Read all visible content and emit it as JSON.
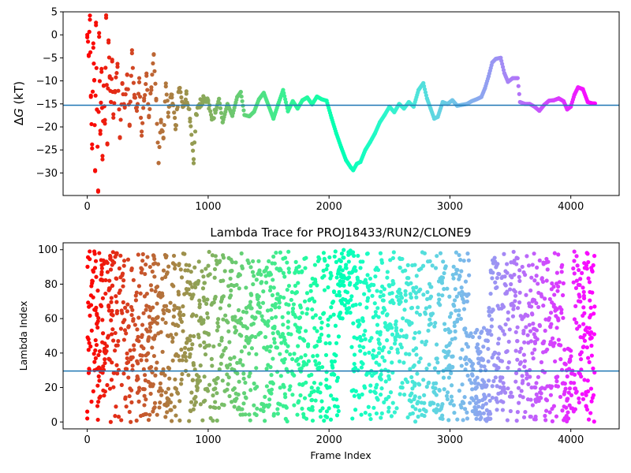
{
  "chart_data": [
    {
      "type": "scatter",
      "title": "",
      "xlabel": "",
      "ylabel": "ΔG (kT)",
      "ylabel_parts": {
        "symbol": "Δ",
        "var": "G",
        "unit": " (kT)"
      },
      "xlim": [
        -200,
        4400
      ],
      "ylim": [
        -34.9,
        5
      ],
      "xticks": [
        0,
        1000,
        2000,
        3000,
        4000
      ],
      "yticks": [
        5,
        0,
        -5,
        -10,
        -15,
        -20,
        -25,
        -30
      ],
      "hline": -15.3,
      "hline_color": "#1f77b4",
      "colormap": "rainbow",
      "frame_range": [
        0,
        4200
      ],
      "series": [
        {
          "points": [
            [
              0,
              0.0
            ],
            [
              12,
              -4.6
            ],
            [
              22,
              4.2
            ],
            [
              30,
              -13.2
            ],
            [
              40,
              -23.8
            ],
            [
              50,
              -2.8
            ],
            [
              58,
              -9.8
            ],
            [
              65,
              -29.6
            ],
            [
              72,
              2.1
            ],
            [
              80,
              -16.2
            ],
            [
              90,
              -33.8
            ],
            [
              98,
              0.4
            ],
            [
              108,
              -21.5
            ],
            [
              118,
              -7.4
            ],
            [
              126,
              -26.3
            ],
            [
              136,
              -11.0
            ],
            [
              146,
              -18.5
            ],
            [
              156,
              3.7
            ],
            [
              166,
              -23.8
            ],
            [
              176,
              -1.2
            ],
            [
              186,
              -9.0
            ],
            [
              196,
              -14.6
            ],
            [
              206,
              -5.4
            ],
            [
              216,
              -18.0
            ],
            [
              230,
              -12.2
            ],
            [
              250,
              -6.3
            ],
            [
              270,
              -22.4
            ],
            [
              290,
              -10.5
            ],
            [
              310,
              -15.8
            ],
            [
              330,
              -8.7
            ],
            [
              350,
              -19.5
            ],
            [
              370,
              -4.0
            ],
            [
              390,
              -13.6
            ],
            [
              410,
              -16.5
            ],
            [
              430,
              -10.3
            ],
            [
              450,
              -21.0
            ],
            [
              470,
              -14.3
            ],
            [
              490,
              -8.9
            ],
            [
              510,
              -17.6
            ],
            [
              530,
              -11.4
            ],
            [
              550,
              -4.2
            ],
            [
              570,
              -13.9
            ],
            [
              590,
              -27.8
            ],
            [
              610,
              -19.0
            ],
            [
              630,
              -22.5
            ],
            [
              650,
              -11.2
            ],
            [
              670,
              -16.9
            ],
            [
              700,
              -13.0
            ],
            [
              730,
              -20.5
            ],
            [
              760,
              -11.6
            ],
            [
              790,
              -15.4
            ],
            [
              820,
              -12.8
            ],
            [
              850,
              -18.2
            ],
            [
              880,
              -27.0
            ],
            [
              900,
              -17.2
            ],
            [
              930,
              -15.0
            ],
            [
              960,
              -14.0
            ],
            [
              1000,
              -14.2
            ],
            [
              1030,
              -18.4
            ],
            [
              1060,
              -16.9
            ],
            [
              1090,
              -13.9
            ],
            [
              1120,
              -19.0
            ],
            [
              1160,
              -15.0
            ],
            [
              1200,
              -17.6
            ],
            [
              1240,
              -13.5
            ],
            [
              1270,
              -12.4
            ],
            [
              1300,
              -17.4
            ],
            [
              1340,
              -17.7
            ],
            [
              1380,
              -16.7
            ],
            [
              1420,
              -14.0
            ],
            [
              1460,
              -12.6
            ],
            [
              1500,
              -15.4
            ],
            [
              1540,
              -18.2
            ],
            [
              1580,
              -15.0
            ],
            [
              1620,
              -12.0
            ],
            [
              1660,
              -16.6
            ],
            [
              1700,
              -14.4
            ],
            [
              1740,
              -16.0
            ],
            [
              1780,
              -14.2
            ],
            [
              1820,
              -13.6
            ],
            [
              1860,
              -15.1
            ],
            [
              1900,
              -13.4
            ],
            [
              1940,
              -14.0
            ],
            [
              1980,
              -14.3
            ],
            [
              2020,
              -18.0
            ],
            [
              2060,
              -21.4
            ],
            [
              2100,
              -24.4
            ],
            [
              2140,
              -27.2
            ],
            [
              2180,
              -28.8
            ],
            [
              2200,
              -29.4
            ],
            [
              2230,
              -28.0
            ],
            [
              2260,
              -27.6
            ],
            [
              2300,
              -25.0
            ],
            [
              2340,
              -23.3
            ],
            [
              2380,
              -21.4
            ],
            [
              2420,
              -19.0
            ],
            [
              2460,
              -17.4
            ],
            [
              2500,
              -15.6
            ],
            [
              2540,
              -16.8
            ],
            [
              2580,
              -15.0
            ],
            [
              2620,
              -16.0
            ],
            [
              2660,
              -14.6
            ],
            [
              2700,
              -15.6
            ],
            [
              2740,
              -12.0
            ],
            [
              2780,
              -10.5
            ],
            [
              2810,
              -13.8
            ],
            [
              2840,
              -16.0
            ],
            [
              2870,
              -18.2
            ],
            [
              2900,
              -17.8
            ],
            [
              2940,
              -14.6
            ],
            [
              2980,
              -15.0
            ],
            [
              3020,
              -14.2
            ],
            [
              3060,
              -15.4
            ],
            [
              3100,
              -15.2
            ],
            [
              3140,
              -15.0
            ],
            [
              3180,
              -14.4
            ],
            [
              3220,
              -14.0
            ],
            [
              3260,
              -13.5
            ],
            [
              3290,
              -11.6
            ],
            [
              3320,
              -9.0
            ],
            [
              3350,
              -6.0
            ],
            [
              3380,
              -5.2
            ],
            [
              3420,
              -5.0
            ],
            [
              3450,
              -8.3
            ],
            [
              3480,
              -10.2
            ],
            [
              3520,
              -9.4
            ],
            [
              3560,
              -9.4
            ],
            [
              3580,
              -14.6
            ],
            [
              3620,
              -15.0
            ],
            [
              3660,
              -15.0
            ],
            [
              3700,
              -15.6
            ],
            [
              3740,
              -16.5
            ],
            [
              3780,
              -15.2
            ],
            [
              3820,
              -14.3
            ],
            [
              3860,
              -14.2
            ],
            [
              3900,
              -13.8
            ],
            [
              3940,
              -14.4
            ],
            [
              3970,
              -16.2
            ],
            [
              4000,
              -15.6
            ],
            [
              4030,
              -13.0
            ],
            [
              4060,
              -11.4
            ],
            [
              4100,
              -11.8
            ],
            [
              4140,
              -14.6
            ],
            [
              4180,
              -14.9
            ],
            [
              4200,
              -14.9
            ]
          ]
        }
      ]
    },
    {
      "type": "scatter",
      "title": "Lambda Trace for PROJ18433/RUN2/CLONE9",
      "xlabel": "Frame Index",
      "ylabel": "Lambda Index",
      "xlim": [
        -200,
        4400
      ],
      "ylim": [
        -4,
        104
      ],
      "xticks": [
        0,
        1000,
        2000,
        3000,
        4000
      ],
      "yticks": [
        0,
        20,
        40,
        60,
        80,
        100
      ],
      "hline": 29.6,
      "hline_color": "#1f77b4",
      "colormap": "rainbow",
      "frame_range": [
        0,
        4200
      ],
      "density_note_points": [
        [
          0,
          6
        ],
        [
          10,
          48
        ],
        [
          20,
          99
        ],
        [
          40,
          82
        ],
        [
          60,
          30
        ],
        [
          80,
          62
        ],
        [
          100,
          14
        ],
        [
          120,
          91
        ],
        [
          150,
          40
        ],
        [
          200,
          72
        ],
        [
          260,
          3
        ],
        [
          340,
          55
        ],
        [
          420,
          25
        ],
        [
          520,
          90
        ],
        [
          640,
          10
        ],
        [
          760,
          66
        ],
        [
          880,
          33
        ],
        [
          1000,
          85
        ],
        [
          1140,
          18
        ],
        [
          1260,
          58
        ],
        [
          1400,
          4
        ],
        [
          1540,
          96
        ],
        [
          1660,
          44
        ],
        [
          1800,
          70
        ],
        [
          1940,
          12
        ],
        [
          2080,
          88
        ],
        [
          2160,
          97
        ],
        [
          2240,
          30
        ],
        [
          2400,
          52
        ],
        [
          2560,
          8
        ],
        [
          2700,
          76
        ],
        [
          2860,
          20
        ],
        [
          3000,
          61
        ],
        [
          3160,
          36
        ],
        [
          3280,
          5
        ],
        [
          3400,
          86
        ],
        [
          3560,
          95
        ],
        [
          3700,
          42
        ],
        [
          3860,
          67
        ],
        [
          3980,
          2
        ],
        [
          4100,
          78
        ],
        [
          4180,
          14
        ]
      ]
    }
  ]
}
